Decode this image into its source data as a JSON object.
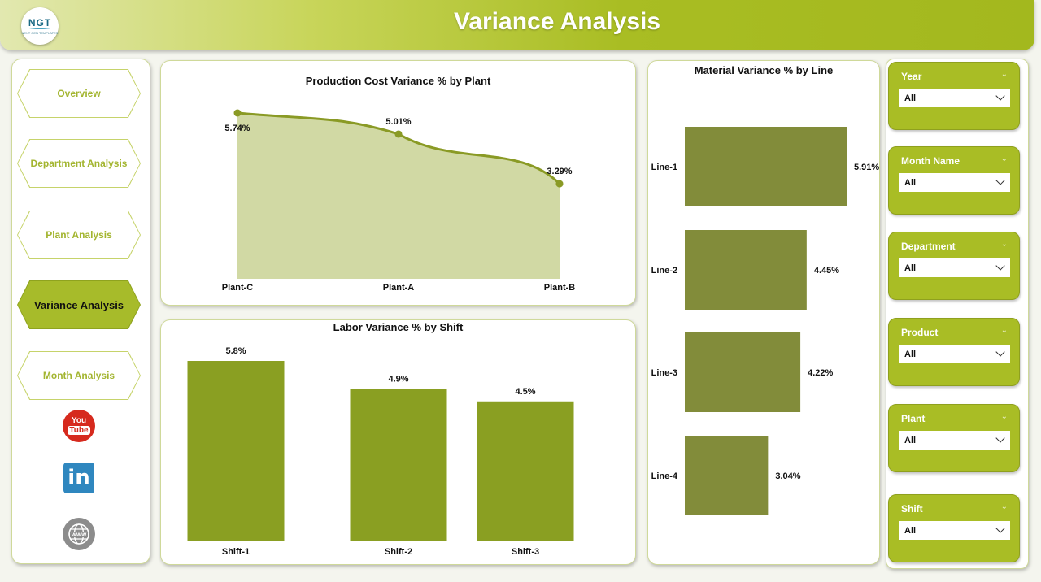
{
  "header": {
    "title": "Variance Analysis",
    "logo_text": "NGT",
    "logo_sub": "NEXT GEN TEMPLATES"
  },
  "nav": {
    "items": [
      {
        "label": "Overview",
        "active": false
      },
      {
        "label": "Department Analysis",
        "active": false
      },
      {
        "label": "Plant Analysis",
        "active": false
      },
      {
        "label": "Variance Analysis",
        "active": true
      },
      {
        "label": "Month Analysis",
        "active": false
      }
    ],
    "youtube": {
      "line1": "You",
      "line2": "Tube"
    },
    "linkedin": "in"
  },
  "slicers": [
    {
      "name": "Year",
      "value": "All"
    },
    {
      "name": "Month Name",
      "value": "All"
    },
    {
      "name": "Department",
      "value": "All"
    },
    {
      "name": "Product",
      "value": "All"
    },
    {
      "name": "Plant",
      "value": "All"
    },
    {
      "name": "Shift",
      "value": "All"
    }
  ],
  "colors": {
    "accent": "#a9bd25",
    "area_fill": "#d1d9a4",
    "area_line": "#8a9a25",
    "bar_olive": "#8a9f22",
    "bar_material": "#828c3a"
  },
  "chart_data": [
    {
      "type": "area",
      "title": "Production Cost Variance % by Plant",
      "categories": [
        "Plant-C",
        "Plant-A",
        "Plant-B"
      ],
      "values": [
        5.74,
        5.01,
        3.29
      ],
      "labels": [
        "5.74%",
        "5.01%",
        "3.29%"
      ],
      "ylim": [
        0,
        5.74
      ]
    },
    {
      "type": "bar",
      "title": "Labor Variance % by Shift",
      "categories": [
        "Shift-1",
        "Shift-2",
        "Shift-3"
      ],
      "values": [
        5.8,
        4.9,
        4.5
      ],
      "labels": [
        "5.8%",
        "4.9%",
        "4.5%"
      ],
      "ylim": [
        0,
        5.8
      ]
    },
    {
      "type": "bar",
      "orientation": "horizontal",
      "title": "Material Variance % by Line",
      "categories": [
        "Line-1",
        "Line-2",
        "Line-3",
        "Line-4"
      ],
      "values": [
        5.91,
        4.45,
        4.22,
        3.04
      ],
      "labels": [
        "5.91%",
        "4.45%",
        "4.22%",
        "3.04%"
      ],
      "xlim": [
        0,
        5.91
      ]
    }
  ]
}
